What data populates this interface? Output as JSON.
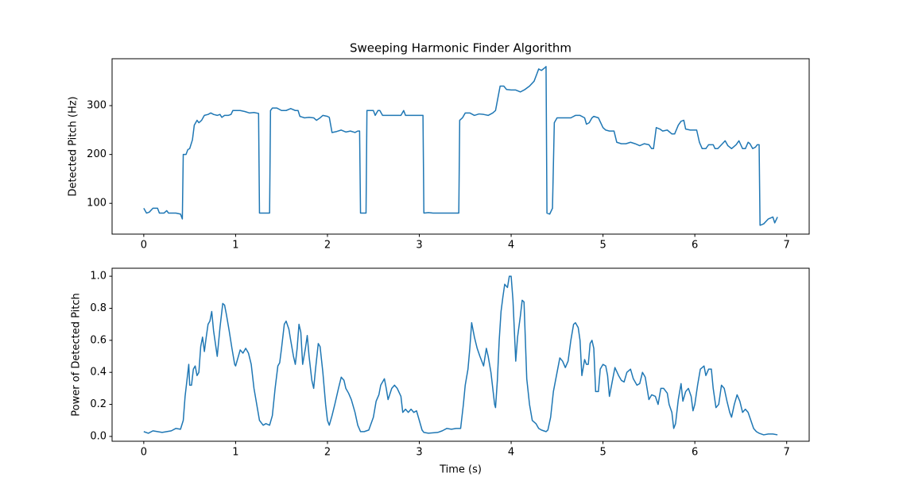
{
  "chart_data": [
    {
      "type": "line",
      "title": "Sweeping Harmonic Finder Algorithm",
      "ylabel": "Detected Pitch (Hz)",
      "color": "#1f77b4",
      "x": [
        0,
        0.03,
        0.06,
        0.1,
        0.15,
        0.17,
        0.2,
        0.22,
        0.25,
        0.27,
        0.3,
        0.35,
        0.4,
        0.42,
        0.43,
        0.46,
        0.48,
        0.5,
        0.53,
        0.55,
        0.58,
        0.6,
        0.63,
        0.66,
        0.7,
        0.73,
        0.76,
        0.8,
        0.83,
        0.85,
        0.88,
        0.92,
        0.95,
        0.97,
        1.0,
        1.05,
        1.1,
        1.15,
        1.2,
        1.25,
        1.26,
        1.3,
        1.37,
        1.38,
        1.4,
        1.45,
        1.5,
        1.55,
        1.6,
        1.65,
        1.68,
        1.7,
        1.75,
        1.8,
        1.85,
        1.88,
        1.92,
        1.95,
        2.0,
        2.02,
        2.05,
        2.1,
        2.15,
        2.2,
        2.25,
        2.3,
        2.33,
        2.35,
        2.36,
        2.42,
        2.43,
        2.5,
        2.52,
        2.55,
        2.57,
        2.6,
        2.7,
        2.8,
        2.83,
        2.85,
        2.9,
        3.0,
        3.04,
        3.05,
        3.1,
        3.15,
        3.3,
        3.43,
        3.44,
        3.47,
        3.5,
        3.55,
        3.6,
        3.65,
        3.7,
        3.75,
        3.8,
        3.83,
        3.85,
        3.88,
        3.92,
        3.95,
        4.0,
        4.05,
        4.1,
        4.15,
        4.2,
        4.25,
        4.28,
        4.3,
        4.33,
        4.37,
        4.38,
        4.39,
        4.42,
        4.45,
        4.47,
        4.5,
        4.6,
        4.65,
        4.7,
        4.75,
        4.8,
        4.82,
        4.85,
        4.88,
        4.9,
        4.95,
        5.0,
        5.03,
        5.07,
        5.12,
        5.15,
        5.2,
        5.25,
        5.3,
        5.35,
        5.4,
        5.45,
        5.5,
        5.53,
        5.55,
        5.58,
        5.62,
        5.65,
        5.7,
        5.75,
        5.78,
        5.82,
        5.85,
        5.88,
        5.9,
        5.95,
        6.02,
        6.05,
        6.08,
        6.12,
        6.15,
        6.2,
        6.22,
        6.25,
        6.3,
        6.33,
        6.36,
        6.4,
        6.45,
        6.48,
        6.52,
        6.55,
        6.58,
        6.6,
        6.63,
        6.66,
        6.68,
        6.7,
        6.71,
        6.75,
        6.8,
        6.85,
        6.87,
        6.9
      ],
      "values": [
        90,
        80,
        82,
        90,
        90,
        80,
        80,
        80,
        85,
        80,
        80,
        80,
        78,
        68,
        200,
        200,
        210,
        212,
        230,
        260,
        270,
        265,
        270,
        280,
        282,
        285,
        282,
        280,
        282,
        276,
        280,
        280,
        282,
        290,
        290,
        290,
        288,
        285,
        286,
        284,
        80,
        80,
        80,
        290,
        295,
        295,
        290,
        290,
        294,
        290,
        290,
        278,
        275,
        276,
        275,
        270,
        275,
        280,
        278,
        276,
        245,
        247,
        250,
        246,
        248,
        245,
        248,
        248,
        80,
        80,
        290,
        290,
        280,
        290,
        290,
        280,
        280,
        280,
        290,
        280,
        280,
        280,
        280,
        80,
        81,
        80,
        80,
        80,
        270,
        275,
        285,
        285,
        280,
        283,
        282,
        280,
        285,
        290,
        310,
        340,
        340,
        333,
        332,
        332,
        328,
        333,
        340,
        350,
        365,
        375,
        372,
        378,
        380,
        80,
        78,
        90,
        265,
        275,
        275,
        275,
        280,
        280,
        275,
        262,
        265,
        275,
        278,
        275,
        255,
        250,
        248,
        248,
        225,
        222,
        222,
        225,
        222,
        218,
        222,
        220,
        212,
        212,
        255,
        252,
        248,
        250,
        242,
        242,
        260,
        268,
        270,
        252,
        250,
        250,
        225,
        212,
        212,
        220,
        220,
        212,
        212,
        222,
        228,
        218,
        212,
        220,
        228,
        212,
        212,
        225,
        222,
        212,
        215,
        220,
        220,
        55,
        58,
        68,
        72,
        60,
        72
      ],
      "xlim": [
        -0.345,
        7.245
      ],
      "xticks": [
        0,
        1,
        2,
        3,
        4,
        5,
        6,
        7
      ],
      "ylim": [
        37,
        396
      ],
      "yticks": [
        100,
        200,
        300
      ]
    },
    {
      "type": "line",
      "xlabel": "Time (s)",
      "ylabel": "Power of Detected Pitch",
      "color": "#1f77b4",
      "x": [
        0,
        0.05,
        0.1,
        0.15,
        0.2,
        0.25,
        0.3,
        0.35,
        0.4,
        0.43,
        0.45,
        0.47,
        0.49,
        0.5,
        0.52,
        0.54,
        0.56,
        0.58,
        0.6,
        0.62,
        0.64,
        0.66,
        0.68,
        0.7,
        0.72,
        0.74,
        0.76,
        0.78,
        0.8,
        0.83,
        0.86,
        0.88,
        0.9,
        0.93,
        0.96,
        0.99,
        1.0,
        1.03,
        1.05,
        1.08,
        1.11,
        1.14,
        1.17,
        1.2,
        1.23,
        1.26,
        1.3,
        1.33,
        1.37,
        1.4,
        1.43,
        1.46,
        1.48,
        1.5,
        1.53,
        1.55,
        1.58,
        1.6,
        1.63,
        1.65,
        1.67,
        1.69,
        1.71,
        1.73,
        1.76,
        1.78,
        1.8,
        1.83,
        1.85,
        1.87,
        1.9,
        1.92,
        1.95,
        1.98,
        2.0,
        2.02,
        2.05,
        2.08,
        2.12,
        2.15,
        2.18,
        2.2,
        2.23,
        2.26,
        2.3,
        2.33,
        2.36,
        2.4,
        2.45,
        2.5,
        2.53,
        2.56,
        2.58,
        2.62,
        2.64,
        2.66,
        2.7,
        2.73,
        2.76,
        2.8,
        2.82,
        2.85,
        2.88,
        2.91,
        2.94,
        2.97,
        3.0,
        3.03,
        3.05,
        3.1,
        3.2,
        3.25,
        3.3,
        3.35,
        3.4,
        3.45,
        3.48,
        3.5,
        3.53,
        3.55,
        3.57,
        3.6,
        3.63,
        3.66,
        3.7,
        3.73,
        3.75,
        3.78,
        3.8,
        3.82,
        3.83,
        3.85,
        3.87,
        3.89,
        3.91,
        3.93,
        3.96,
        3.98,
        4.0,
        4.02,
        4.05,
        4.07,
        4.1,
        4.12,
        4.14,
        4.17,
        4.2,
        4.23,
        4.27,
        4.3,
        4.33,
        4.38,
        4.4,
        4.43,
        4.46,
        4.5,
        4.53,
        4.56,
        4.59,
        4.62,
        4.65,
        4.68,
        4.7,
        4.73,
        4.75,
        4.77,
        4.8,
        4.82,
        4.84,
        4.86,
        4.88,
        4.9,
        4.92,
        4.95,
        4.97,
        5.0,
        5.03,
        5.05,
        5.07,
        5.1,
        5.13,
        5.17,
        5.2,
        5.23,
        5.26,
        5.3,
        5.33,
        5.37,
        5.4,
        5.43,
        5.46,
        5.48,
        5.5,
        5.53,
        5.57,
        5.6,
        5.63,
        5.66,
        5.7,
        5.72,
        5.75,
        5.77,
        5.79,
        5.82,
        5.85,
        5.87,
        5.9,
        5.93,
        5.96,
        5.98,
        6.0,
        6.03,
        6.06,
        6.1,
        6.12,
        6.15,
        6.18,
        6.2,
        6.23,
        6.26,
        6.29,
        6.32,
        6.35,
        6.38,
        6.4,
        6.43,
        6.46,
        6.49,
        6.52,
        6.55,
        6.58,
        6.61,
        6.64,
        6.67,
        6.7,
        6.75,
        6.8,
        6.85,
        6.9
      ],
      "values": [
        0.03,
        0.02,
        0.035,
        0.03,
        0.025,
        0.03,
        0.035,
        0.05,
        0.045,
        0.1,
        0.25,
        0.35,
        0.45,
        0.32,
        0.32,
        0.42,
        0.44,
        0.38,
        0.4,
        0.56,
        0.62,
        0.53,
        0.62,
        0.7,
        0.72,
        0.78,
        0.66,
        0.58,
        0.5,
        0.68,
        0.83,
        0.82,
        0.76,
        0.66,
        0.55,
        0.45,
        0.44,
        0.5,
        0.54,
        0.52,
        0.55,
        0.52,
        0.45,
        0.3,
        0.2,
        0.1,
        0.07,
        0.08,
        0.07,
        0.13,
        0.3,
        0.44,
        0.46,
        0.55,
        0.7,
        0.72,
        0.67,
        0.6,
        0.5,
        0.45,
        0.55,
        0.7,
        0.65,
        0.45,
        0.55,
        0.63,
        0.5,
        0.35,
        0.3,
        0.42,
        0.58,
        0.56,
        0.4,
        0.2,
        0.1,
        0.07,
        0.13,
        0.2,
        0.3,
        0.37,
        0.35,
        0.3,
        0.27,
        0.23,
        0.15,
        0.07,
        0.03,
        0.03,
        0.04,
        0.12,
        0.22,
        0.26,
        0.32,
        0.36,
        0.3,
        0.23,
        0.3,
        0.32,
        0.3,
        0.25,
        0.15,
        0.17,
        0.15,
        0.17,
        0.15,
        0.16,
        0.1,
        0.04,
        0.025,
        0.02,
        0.025,
        0.035,
        0.05,
        0.045,
        0.05,
        0.05,
        0.2,
        0.32,
        0.42,
        0.55,
        0.71,
        0.62,
        0.55,
        0.5,
        0.44,
        0.55,
        0.5,
        0.4,
        0.3,
        0.2,
        0.18,
        0.35,
        0.6,
        0.78,
        0.87,
        0.95,
        0.93,
        1.0,
        1.0,
        0.85,
        0.47,
        0.62,
        0.75,
        0.85,
        0.84,
        0.36,
        0.2,
        0.1,
        0.08,
        0.05,
        0.04,
        0.03,
        0.04,
        0.12,
        0.28,
        0.4,
        0.49,
        0.47,
        0.43,
        0.47,
        0.6,
        0.7,
        0.71,
        0.68,
        0.6,
        0.38,
        0.48,
        0.45,
        0.45,
        0.58,
        0.6,
        0.55,
        0.28,
        0.28,
        0.42,
        0.45,
        0.44,
        0.38,
        0.25,
        0.34,
        0.43,
        0.38,
        0.35,
        0.34,
        0.4,
        0.42,
        0.36,
        0.32,
        0.33,
        0.4,
        0.37,
        0.3,
        0.23,
        0.26,
        0.25,
        0.2,
        0.3,
        0.3,
        0.27,
        0.2,
        0.15,
        0.05,
        0.08,
        0.23,
        0.33,
        0.22,
        0.28,
        0.3,
        0.25,
        0.16,
        0.2,
        0.32,
        0.42,
        0.44,
        0.38,
        0.42,
        0.42,
        0.3,
        0.18,
        0.2,
        0.32,
        0.3,
        0.22,
        0.15,
        0.12,
        0.2,
        0.26,
        0.22,
        0.15,
        0.17,
        0.15,
        0.1,
        0.05,
        0.03,
        0.02,
        0.01,
        0.015,
        0.015,
        0.01
      ],
      "xlim": [
        -0.345,
        7.245
      ],
      "xticks": [
        0,
        1,
        2,
        3,
        4,
        5,
        6,
        7
      ],
      "ylim": [
        -0.03,
        1.05
      ],
      "yticks": [
        {
          "value": 0,
          "label": "0.0"
        },
        {
          "value": 0.2,
          "label": "0.2"
        },
        {
          "value": 0.4,
          "label": "0.4"
        },
        {
          "value": 0.6,
          "label": "0.6"
        },
        {
          "value": 0.8,
          "label": "0.8"
        },
        {
          "value": 1,
          "label": "1.0"
        }
      ]
    }
  ]
}
